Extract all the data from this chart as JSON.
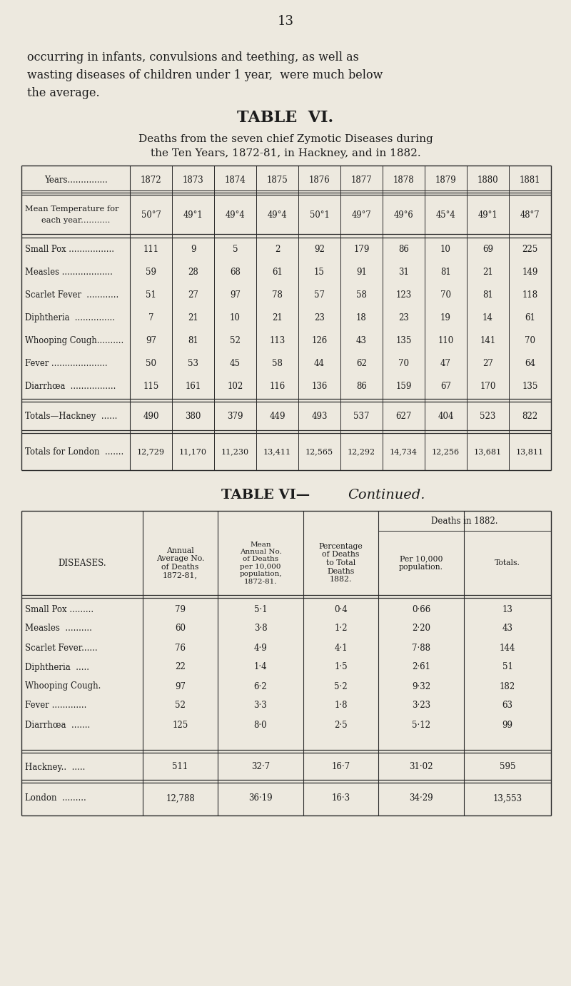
{
  "page_number": "13",
  "intro_line1": "occurring in infants, convulsions and teething, as well as",
  "intro_line2": "wasting diseases of children under 1 year,  were much below",
  "intro_line3": "the average.",
  "table1_title": "TABLE  VI.",
  "table1_sub1": "Deaths from the seven chief Zymotic Diseases during",
  "table1_sub2": "the Ten Years, 1872-81, in Hackney, and in 1882.",
  "years": [
    "1872",
    "1873",
    "1874",
    "1875",
    "1876",
    "1877",
    "1878",
    "1879",
    "1880",
    "1881"
  ],
  "temperatures": [
    "50°7",
    "49°1",
    "49°4",
    "49°4",
    "50°1",
    "49°7",
    "49°6",
    "45°4",
    "49°1",
    "48°7"
  ],
  "diseases1": [
    {
      "name": "Small Pox .................",
      "vals": [
        "111",
        "9",
        "5",
        "2",
        "92",
        "179",
        "86",
        "10",
        "69",
        "225"
      ]
    },
    {
      "name": "Measles ...................",
      "vals": [
        "59",
        "28",
        "68",
        "61",
        "15",
        "91",
        "31",
        "81",
        "21",
        "149"
      ]
    },
    {
      "name": "Scarlet Fever  ............",
      "vals": [
        "51",
        "27",
        "97",
        "78",
        "57",
        "58",
        "123",
        "70",
        "81",
        "118"
      ]
    },
    {
      "name": "Diphtheria  ...............",
      "vals": [
        "7",
        "21",
        "10",
        "21",
        "23",
        "18",
        "23",
        "19",
        "14",
        "61"
      ]
    },
    {
      "name": "Whooping Cough..........",
      "vals": [
        "97",
        "81",
        "52",
        "113",
        "126",
        "43",
        "135",
        "110",
        "141",
        "70"
      ]
    },
    {
      "name": "Fever .....................",
      "vals": [
        "50",
        "53",
        "45",
        "58",
        "44",
        "62",
        "70",
        "47",
        "27",
        "64"
      ]
    },
    {
      "name": "Diarrhœa  .................",
      "vals": [
        "115",
        "161",
        "102",
        "116",
        "136",
        "86",
        "159",
        "67",
        "170",
        "135"
      ]
    }
  ],
  "hackney1": [
    "490",
    "380",
    "379",
    "449",
    "493",
    "537",
    "627",
    "404",
    "523",
    "822"
  ],
  "london1": [
    "12,729",
    "11,170",
    "11,230",
    "13,411",
    "12,565",
    "12,292",
    "14,734",
    "12,256",
    "13,681",
    "13,811"
  ],
  "diseases2": [
    {
      "name": "Small Pox .........",
      "avg": "79",
      "mean": "5·1",
      "pct": "0·4",
      "per10k": "0·66",
      "total": "13"
    },
    {
      "name": "Measles  ..........",
      "avg": "60",
      "mean": "3·8",
      "pct": "1·2",
      "per10k": "2·20",
      "total": "43"
    },
    {
      "name": "Scarlet Fever......",
      "avg": "76",
      "mean": "4·9",
      "pct": "4·1",
      "per10k": "7·88",
      "total": "144"
    },
    {
      "name": "Diphtheria  .....",
      "avg": "22",
      "mean": "1·4",
      "pct": "1·5",
      "per10k": "2·61",
      "total": "51"
    },
    {
      "name": "Whooping Cough.",
      "avg": "97",
      "mean": "6·2",
      "pct": "5·2",
      "per10k": "9·32",
      "total": "182"
    },
    {
      "name": "Fever .............",
      "avg": "52",
      "mean": "3·3",
      "pct": "1·8",
      "per10k": "3·23",
      "total": "63"
    },
    {
      "name": "Diarrhœa  .......",
      "avg": "125",
      "mean": "8·0",
      "pct": "2·5",
      "per10k": "5·12",
      "total": "99"
    }
  ],
  "hackney2": {
    "name": "Hackney..  .....",
    "avg": "511",
    "mean": "32·7",
    "pct": "16·7",
    "per10k": "31·02",
    "total": "595"
  },
  "london2": {
    "name": "London  .........",
    "avg": "12,788",
    "mean": "36·19",
    "pct": "16·3",
    "per10k": "34·29",
    "total": "13,553"
  },
  "bg_color": "#ede9df",
  "text_color": "#1c1c1c",
  "line_color": "#2a2a2a"
}
